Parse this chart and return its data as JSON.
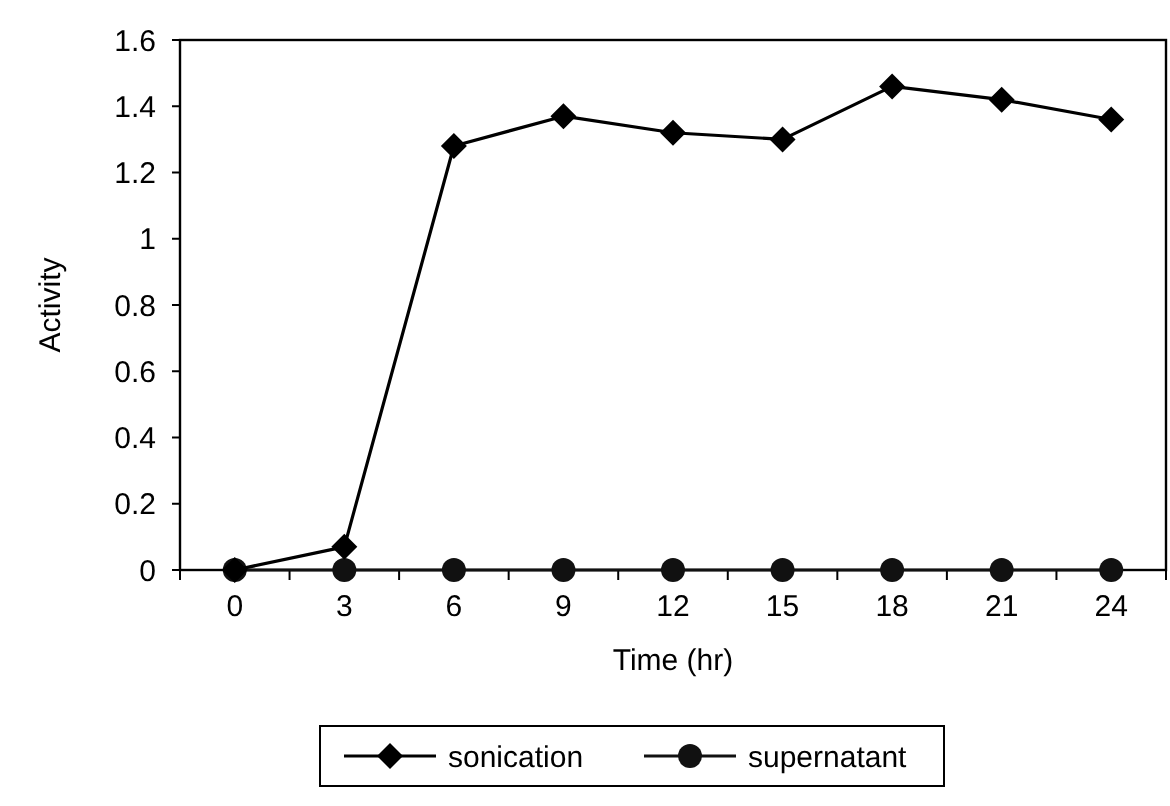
{
  "chart_data": {
    "type": "line",
    "xlabel": "Time (hr)",
    "ylabel": "Activity",
    "categories": [
      "0",
      "3",
      "6",
      "9",
      "12",
      "15",
      "18",
      "21",
      "24"
    ],
    "ylim": [
      0,
      1.6
    ],
    "yticks": [
      0,
      0.2,
      0.4,
      0.6,
      0.8,
      1,
      1.2,
      1.4,
      1.6
    ],
    "grid": false,
    "legend": "bottom",
    "line_style": "solid",
    "series": [
      {
        "name": "sonication",
        "color": "#000000",
        "marker": "diamond",
        "values": [
          0,
          0.07,
          1.28,
          1.37,
          1.32,
          1.3,
          1.46,
          1.42,
          1.36
        ]
      },
      {
        "name": "supernatant",
        "color": "#111111",
        "marker": "circle",
        "values": [
          0,
          0,
          0,
          0,
          0,
          0,
          0,
          0,
          0
        ]
      }
    ]
  }
}
